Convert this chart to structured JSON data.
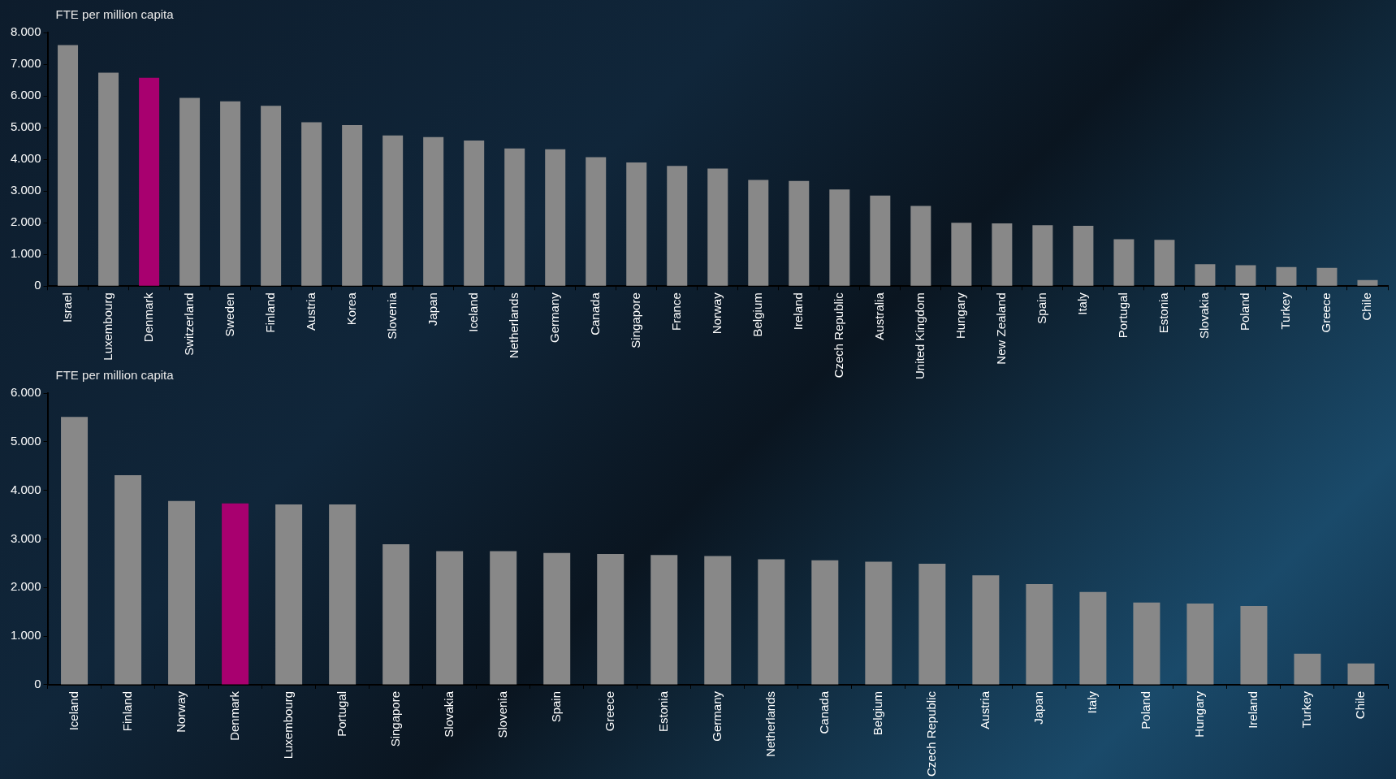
{
  "chart_data": [
    {
      "type": "bar",
      "ylabel": "FTE per million capita",
      "categories": [
        "Israel",
        "Luxembourg",
        "Denmark",
        "Switzerland",
        "Sweden",
        "Finland",
        "Austria",
        "Korea",
        "Slovenia",
        "Japan",
        "Iceland",
        "Netherlands",
        "Germany",
        "Canada",
        "Singapore",
        "France",
        "Norway",
        "Belgium",
        "Ireland",
        "Czech Republic",
        "Australia",
        "United Kingdom",
        "Hungary",
        "New Zealand",
        "Spain",
        "Italy",
        "Portugal",
        "Estonia",
        "Slovakia",
        "Poland",
        "Turkey",
        "Greece",
        "Chile"
      ],
      "values": [
        7600,
        6730,
        6570,
        5940,
        5830,
        5690,
        5170,
        5080,
        4750,
        4700,
        4590,
        4340,
        4320,
        4070,
        3900,
        3790,
        3710,
        3350,
        3320,
        3050,
        2860,
        2530,
        2000,
        1980,
        1920,
        1900,
        1480,
        1460,
        690,
        660,
        600,
        580,
        190
      ],
      "colors": [
        "#888888",
        "#888888",
        "#a8006f",
        "#888888",
        "#888888",
        "#888888",
        "#888888",
        "#888888",
        "#888888",
        "#888888",
        "#888888",
        "#888888",
        "#888888",
        "#888888",
        "#888888",
        "#888888",
        "#888888",
        "#888888",
        "#888888",
        "#888888",
        "#888888",
        "#888888",
        "#888888",
        "#888888",
        "#888888",
        "#888888",
        "#888888",
        "#888888",
        "#888888",
        "#888888",
        "#888888",
        "#888888",
        "#888888"
      ],
      "ylim": [
        0,
        8000
      ],
      "yticks": [
        0,
        {
          "value": 1000,
          "label": "1.000"
        },
        {
          "value": 2000,
          "label": "2.000"
        },
        {
          "value": 3000,
          "label": "3.000"
        },
        {
          "value": 4000,
          "label": "4.000"
        },
        {
          "value": 5000,
          "label": "5.000"
        },
        {
          "value": 6000,
          "label": "6.000"
        },
        {
          "value": 7000,
          "label": "7.000"
        },
        {
          "value": 8000,
          "label": "8.000"
        }
      ]
    },
    {
      "type": "bar",
      "ylabel": "FTE per million capita",
      "categories": [
        "Iceland",
        "Finland",
        "Norway",
        "Denmark",
        "Luxembourg",
        "Portugal",
        "Singapore",
        "Slovakia",
        "Slovenia",
        "Spain",
        "Greece",
        "Estonia",
        "Germany",
        "Netherlands",
        "Canada",
        "Belgium",
        "Czech Republic",
        "Austria",
        "Japan",
        "Italy",
        "Poland",
        "Hungary",
        "Ireland",
        "Turkey",
        "Chile"
      ],
      "values": [
        5510,
        4310,
        3780,
        3730,
        3710,
        3710,
        2890,
        2750,
        2750,
        2710,
        2690,
        2670,
        2650,
        2580,
        2560,
        2530,
        2490,
        2250,
        2070,
        1910,
        1690,
        1670,
        1620,
        640,
        440
      ],
      "colors": [
        "#888888",
        "#888888",
        "#888888",
        "#a8006f",
        "#888888",
        "#888888",
        "#888888",
        "#888888",
        "#888888",
        "#888888",
        "#888888",
        "#888888",
        "#888888",
        "#888888",
        "#888888",
        "#888888",
        "#888888",
        "#888888",
        "#888888",
        "#888888",
        "#888888",
        "#888888",
        "#888888",
        "#888888",
        "#888888"
      ],
      "ylim": [
        0,
        6000
      ],
      "yticks": [
        0,
        {
          "value": 1000,
          "label": "1.000"
        },
        {
          "value": 2000,
          "label": "2.000"
        },
        {
          "value": 3000,
          "label": "3.000"
        },
        {
          "value": 4000,
          "label": "4.000"
        },
        {
          "value": 5000,
          "label": "5.000"
        },
        {
          "value": 6000,
          "label": "6.000"
        }
      ]
    }
  ]
}
